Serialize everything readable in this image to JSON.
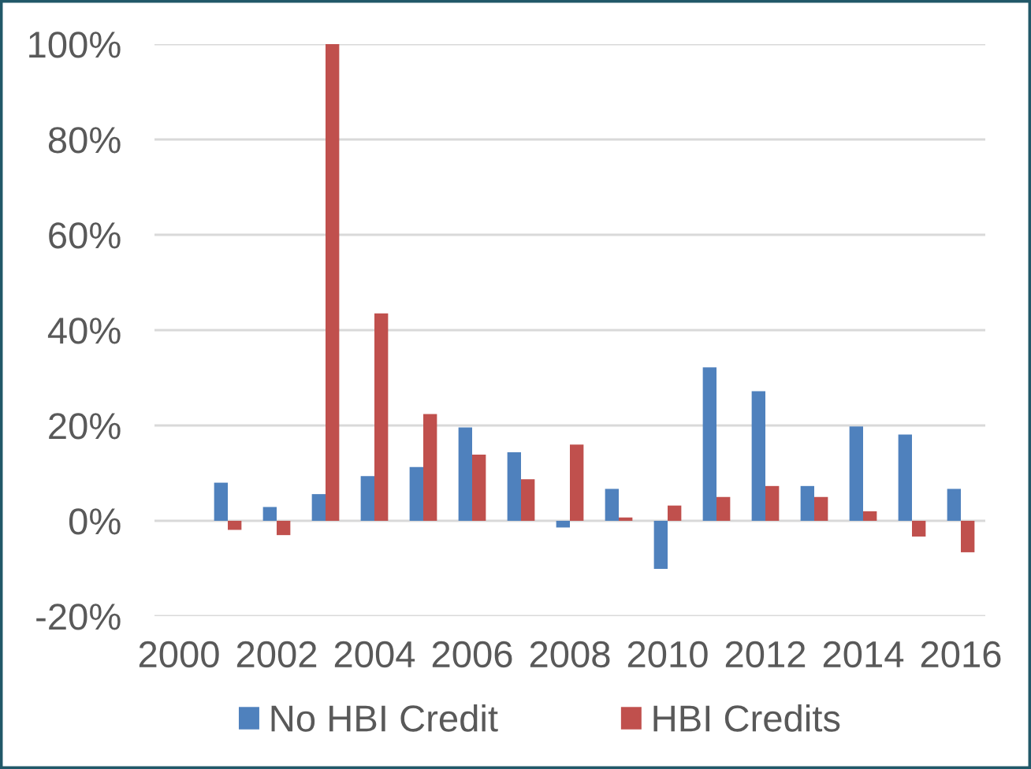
{
  "chart_data": {
    "type": "bar",
    "categories": [
      "2000",
      null,
      "2002",
      null,
      "2004",
      null,
      "2006",
      null,
      "2008",
      null,
      "2010",
      null,
      "2012",
      null,
      "2014",
      null,
      "2016"
    ],
    "series": [
      {
        "name": "No HBI Credit",
        "color": "#4f81bd",
        "values": [
          null,
          8.0,
          2.9,
          5.6,
          9.4,
          11.3,
          19.6,
          14.4,
          -1.4,
          6.7,
          -10.1,
          32.2,
          27.2,
          7.3,
          19.8,
          18.1,
          6.7
        ]
      },
      {
        "name": "HBI Credits",
        "color": "#c0504d",
        "values": [
          null,
          -1.9,
          -3.0,
          100,
          43.5,
          22.4,
          13.9,
          8.7,
          16.0,
          0.7,
          3.2,
          5.0,
          7.3,
          5.0,
          2.0,
          -3.3,
          -6.6
        ]
      }
    ],
    "ylim": [
      -20,
      100
    ],
    "yticks": [
      {
        "value": -20,
        "label": "-20%"
      },
      {
        "value": 0,
        "label": "0%"
      },
      {
        "value": 20,
        "label": "20%"
      },
      {
        "value": 40,
        "label": "40%"
      },
      {
        "value": 60,
        "label": "60%"
      },
      {
        "value": 80,
        "label": "80%"
      },
      {
        "value": 100,
        "label": "100%"
      }
    ],
    "grid": "y",
    "legend": "bottom"
  }
}
